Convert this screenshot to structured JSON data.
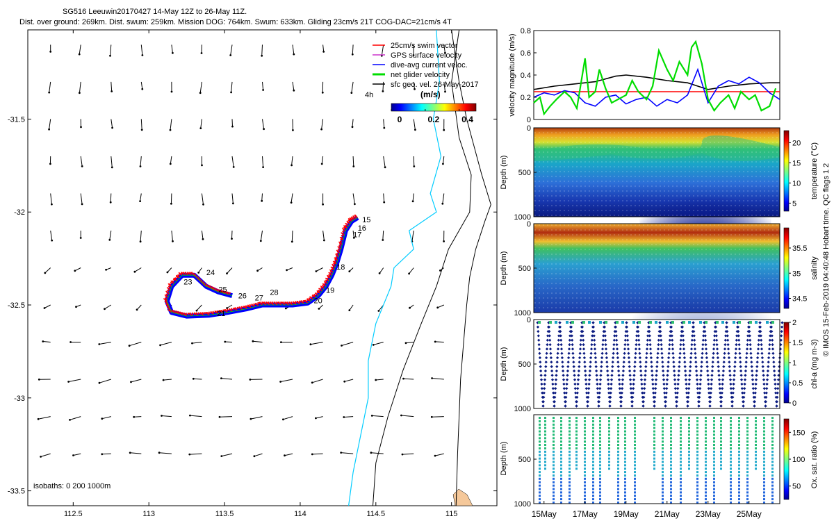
{
  "title": {
    "line1": "SG516 Leeuwin20170427 14-May 12Z to 26-May 11Z.",
    "line2": "Dist. over ground: 269km. Dist. swum: 259km. Mission DOG: 764km. Swum: 633km. Gliding 23cm/s 21T COG-DAC=21cm/s 4T"
  },
  "colors": {
    "swim": "#ff0000",
    "gps": "#cc33cc",
    "dac": "#0000ff",
    "net": "#00dd00",
    "geo": "#000000",
    "isobath_200": "#00ccff",
    "isobath_1000": "#000000",
    "land": "#f5c89a"
  },
  "chart_data": [
    {
      "type": "scatter",
      "name": "track-map",
      "xlim": [
        112.2,
        115.3
      ],
      "ylim": [
        -33.58,
        -31.02
      ],
      "xticks": [
        112.5,
        113,
        113.5,
        114,
        114.5,
        115
      ],
      "xtick_labels": [
        "112.5",
        "113",
        "113.5",
        "114",
        "114.5",
        "115"
      ],
      "yticks": [
        -31.5,
        -32,
        -32.5,
        -33,
        -33.5
      ],
      "ytick_labels": [
        "-31.5",
        "-32",
        "-32.5",
        "-33",
        "-33.5"
      ],
      "legend": [
        {
          "key": "swim",
          "label": "25cm/s swim vector"
        },
        {
          "key": "gps",
          "label": "GPS surface velocity"
        },
        {
          "key": "dac",
          "label": "dive-avg current veloc."
        },
        {
          "key": "net",
          "label": "net glider velocity"
        },
        {
          "key": "geo",
          "label": "sfc geo. vel. 26-May-2017"
        }
      ],
      "legend_note": "4h",
      "colorbar": {
        "label": "(m/s)",
        "ticks": [
          0,
          0.2,
          0.4
        ],
        "tick_labels": [
          "0",
          "0.2",
          "0.4"
        ],
        "range": [
          0,
          0.5
        ]
      },
      "isobaths_label": "isobaths: 0   200  1000m",
      "track": [
        [
          114.38,
          -32.03
        ],
        [
          114.34,
          -32.05
        ],
        [
          114.3,
          -32.1
        ],
        [
          114.27,
          -32.2
        ],
        [
          114.24,
          -32.28
        ],
        [
          114.21,
          -32.34
        ],
        [
          114.17,
          -32.4
        ],
        [
          114.12,
          -32.45
        ],
        [
          114.05,
          -32.49
        ],
        [
          113.95,
          -32.5
        ],
        [
          113.85,
          -32.5
        ],
        [
          113.75,
          -32.5
        ],
        [
          113.65,
          -32.52
        ],
        [
          113.52,
          -32.54
        ],
        [
          113.4,
          -32.555
        ],
        [
          113.25,
          -32.56
        ],
        [
          113.15,
          -32.54
        ],
        [
          113.12,
          -32.48
        ],
        [
          113.15,
          -32.4
        ],
        [
          113.22,
          -32.34
        ],
        [
          113.3,
          -32.34
        ],
        [
          113.38,
          -32.4
        ],
        [
          113.46,
          -32.43
        ],
        [
          113.55,
          -32.45
        ]
      ],
      "day_labels": [
        {
          "text": "15",
          "lon": 114.41,
          "lat": -32.055
        },
        {
          "text": "16",
          "lon": 114.38,
          "lat": -32.1
        },
        {
          "text": "17",
          "lon": 114.35,
          "lat": -32.135
        },
        {
          "text": "18",
          "lon": 114.24,
          "lat": -32.31
        },
        {
          "text": "19",
          "lon": 114.17,
          "lat": -32.435
        },
        {
          "text": "20",
          "lon": 114.09,
          "lat": -32.49
        },
        {
          "text": "21",
          "lon": 113.45,
          "lat": -32.56
        },
        {
          "text": "23",
          "lon": 113.23,
          "lat": -32.39
        },
        {
          "text": "24",
          "lon": 113.38,
          "lat": -32.34
        },
        {
          "text": "25",
          "lon": 113.46,
          "lat": -32.43
        },
        {
          "text": "26",
          "lon": 113.59,
          "lat": -32.465
        },
        {
          "text": "27",
          "lon": 113.7,
          "lat": -32.475
        },
        {
          "text": "28",
          "lon": 113.8,
          "lat": -32.445
        }
      ],
      "coast": [
        [
          115.0,
          -31.02
        ],
        [
          115.05,
          -31.3
        ],
        [
          115.1,
          -31.5
        ],
        [
          115.2,
          -31.8
        ],
        [
          115.26,
          -31.96
        ],
        [
          115.22,
          -32.05
        ],
        [
          115.16,
          -32.2
        ],
        [
          115.12,
          -32.35
        ],
        [
          115.1,
          -32.5
        ],
        [
          115.08,
          -32.7
        ],
        [
          115.06,
          -32.9
        ],
        [
          115.05,
          -33.1
        ],
        [
          115.04,
          -33.3
        ],
        [
          115.03,
          -33.58
        ]
      ],
      "isobath_200": [
        [
          114.9,
          -31.02
        ],
        [
          114.92,
          -31.3
        ],
        [
          114.88,
          -31.5
        ],
        [
          114.93,
          -31.7
        ],
        [
          114.86,
          -31.9
        ],
        [
          114.9,
          -32.0
        ],
        [
          114.72,
          -32.1
        ],
        [
          114.75,
          -32.2
        ],
        [
          114.62,
          -32.3
        ],
        [
          114.6,
          -32.4
        ],
        [
          114.5,
          -32.6
        ],
        [
          114.45,
          -32.8
        ],
        [
          114.45,
          -33.0
        ],
        [
          114.4,
          -33.2
        ],
        [
          114.35,
          -33.4
        ],
        [
          114.32,
          -33.58
        ]
      ],
      "isobath_1000": [
        [
          115.05,
          -31.02
        ],
        [
          115.0,
          -31.3
        ],
        [
          115.05,
          -31.6
        ],
        [
          115.13,
          -31.8
        ],
        [
          115.12,
          -32.0
        ],
        [
          114.98,
          -32.2
        ],
        [
          114.9,
          -32.4
        ],
        [
          114.8,
          -32.6
        ],
        [
          114.68,
          -32.85
        ],
        [
          114.58,
          -33.1
        ],
        [
          114.5,
          -33.35
        ],
        [
          114.48,
          -33.58
        ]
      ],
      "vector_grid": {
        "lon_start": 112.35,
        "lon_step": 0.2,
        "lon_count": 14,
        "lat_start": -31.1,
        "lat_step": -0.2,
        "lat_count": 12
      }
    },
    {
      "type": "line",
      "name": "velocity-timeseries",
      "ylabel": "velocity magnitude (m/s)",
      "ylim": [
        0,
        0.8
      ],
      "yticks": [
        0,
        0.2,
        0.4,
        0.6,
        0.8
      ],
      "ytick_labels": [
        "0",
        "0.2",
        "0.4",
        "0.6",
        "0.8"
      ],
      "xlim": [
        14.5,
        26.5
      ],
      "series": [
        {
          "name": "swim",
          "color_key": "swim",
          "x": [
            14.5,
            26.5
          ],
          "values": [
            0.25,
            0.25
          ]
        },
        {
          "name": "geo",
          "color_key": "geo",
          "x": [
            14.5,
            15.5,
            16.5,
            17.5,
            18.5,
            19,
            20,
            21,
            22,
            22.5,
            23,
            24,
            25,
            26,
            26.5
          ],
          "values": [
            0.27,
            0.3,
            0.32,
            0.34,
            0.39,
            0.4,
            0.38,
            0.35,
            0.33,
            0.3,
            0.27,
            0.3,
            0.32,
            0.33,
            0.33
          ]
        },
        {
          "name": "dac",
          "color_key": "dac",
          "x": [
            14.5,
            15,
            15.5,
            16,
            16.5,
            17,
            17.5,
            18,
            18.5,
            19,
            19.5,
            20,
            20.5,
            21,
            21.5,
            22,
            22.5,
            23,
            23.5,
            24,
            24.5,
            25,
            25.5,
            26,
            26.5
          ],
          "values": [
            0.2,
            0.24,
            0.22,
            0.26,
            0.24,
            0.15,
            0.12,
            0.2,
            0.22,
            0.14,
            0.18,
            0.2,
            0.12,
            0.18,
            0.15,
            0.22,
            0.45,
            0.15,
            0.3,
            0.35,
            0.32,
            0.38,
            0.33,
            0.24,
            0.18
          ]
        },
        {
          "name": "net",
          "color_key": "net",
          "x": [
            14.5,
            14.8,
            15,
            15.3,
            15.6,
            16,
            16.3,
            16.6,
            17,
            17.2,
            17.5,
            17.7,
            18,
            18.3,
            18.6,
            19,
            19.3,
            19.6,
            20,
            20.3,
            20.6,
            21,
            21.3,
            21.6,
            22,
            22.2,
            22.4,
            22.7,
            23,
            23.3,
            23.6,
            24,
            24.3,
            24.6,
            25,
            25.3,
            25.6,
            26,
            26.3
          ],
          "values": [
            0.15,
            0.2,
            0.05,
            0.12,
            0.18,
            0.25,
            0.2,
            0.1,
            0.55,
            0.2,
            0.25,
            0.45,
            0.28,
            0.15,
            0.18,
            0.22,
            0.35,
            0.25,
            0.18,
            0.3,
            0.62,
            0.45,
            0.35,
            0.52,
            0.4,
            0.65,
            0.7,
            0.5,
            0.18,
            0.08,
            0.15,
            0.22,
            0.1,
            0.25,
            0.18,
            0.22,
            0.08,
            0.12,
            0.28
          ]
        }
      ]
    },
    {
      "type": "heatmap",
      "name": "temperature-section",
      "ylabel": "Depth (m)",
      "yticks": [
        0,
        500,
        1000
      ],
      "ytick_labels": [
        "0",
        "500",
        "1000"
      ],
      "cbar_label": "temperature (°C)",
      "cbar_ticks": [
        5,
        10,
        15,
        20
      ],
      "cbar_tick_labels": [
        "5",
        "10",
        "15",
        "20"
      ],
      "cbar_range": [
        3,
        23
      ]
    },
    {
      "type": "heatmap",
      "name": "salinity-section",
      "ylabel": "Depth (m)",
      "yticks": [
        0,
        500,
        1000
      ],
      "ytick_labels": [
        "0",
        "500",
        "1000"
      ],
      "cbar_label": "salinity",
      "cbar_ticks": [
        34.5,
        35,
        35.5
      ],
      "cbar_tick_labels": [
        "34.5",
        "35",
        "35.5"
      ],
      "cbar_range": [
        34.3,
        35.9
      ]
    },
    {
      "type": "scatter",
      "name": "chla-section",
      "ylabel": "Depth (m)",
      "yticks": [
        0,
        500,
        1000
      ],
      "ytick_labels": [
        "0",
        "500",
        "1000"
      ],
      "cbar_label": "chl-a (mg m-3)",
      "cbar_ticks": [
        0,
        0.5,
        1,
        1.5,
        2
      ],
      "cbar_tick_labels": [
        "0",
        "0.5",
        "1",
        "1.5",
        "2"
      ],
      "cbar_range": [
        0,
        2
      ]
    },
    {
      "type": "scatter",
      "name": "oxygen-section",
      "ylabel": "Depth (m)",
      "yticks": [
        500,
        1000
      ],
      "ytick_labels": [
        "500",
        "1000"
      ],
      "cbar_label": "Ox. sat. ratio (%)",
      "cbar_ticks": [
        50,
        100,
        150
      ],
      "cbar_tick_labels": [
        "50",
        "100",
        "150"
      ],
      "cbar_range": [
        25,
        175
      ],
      "xticks": [
        15,
        17,
        19,
        21,
        23,
        25
      ],
      "xtick_labels": [
        "15May",
        "17May",
        "19May",
        "21May",
        "23May",
        "25May"
      ],
      "xlim": [
        14.5,
        26.5
      ]
    }
  ],
  "side_note": "© IMOS 15-Feb-2019 04:40:48 Hobart time. QC flags 1  2"
}
